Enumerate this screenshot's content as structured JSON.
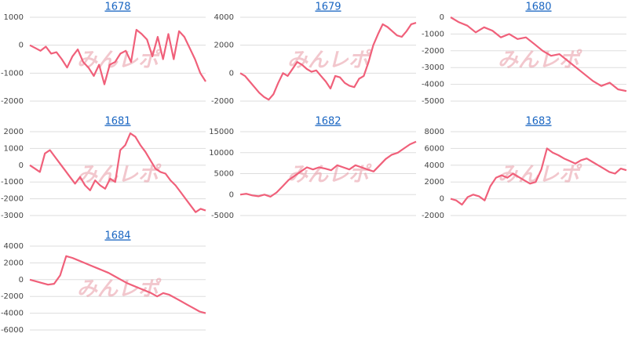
{
  "watermark": "みんレポ",
  "chart_data": [
    {
      "type": "line",
      "title": "1678",
      "color": "#f0607a",
      "grid": true,
      "ylim": [
        -2000,
        1000
      ],
      "yticks": [
        -2000,
        -1000,
        0,
        1000
      ],
      "values": [
        0,
        -100,
        -200,
        -50,
        -300,
        -250,
        -500,
        -800,
        -400,
        -150,
        -600,
        -800,
        -1100,
        -700,
        -1400,
        -700,
        -600,
        -300,
        -200,
        -600,
        550,
        400,
        200,
        -400,
        300,
        -500,
        400,
        -500,
        500,
        300,
        -100,
        -500,
        -1000,
        -1300
      ]
    },
    {
      "type": "line",
      "title": "1679",
      "color": "#f0607a",
      "grid": true,
      "ylim": [
        -2000,
        4000
      ],
      "yticks": [
        -2000,
        0,
        2000,
        4000
      ],
      "values": [
        0,
        -200,
        -600,
        -1000,
        -1400,
        -1700,
        -1900,
        -1500,
        -700,
        0,
        -200,
        300,
        800,
        600,
        300,
        100,
        200,
        -200,
        -600,
        -1100,
        -200,
        -300,
        -700,
        -900,
        -1000,
        -400,
        -200,
        800,
        2000,
        2800,
        3500,
        3300,
        3000,
        2700,
        2600,
        3000,
        3500,
        3600
      ]
    },
    {
      "type": "line",
      "title": "1680",
      "color": "#f0607a",
      "grid": true,
      "ylim": [
        -5000,
        0
      ],
      "yticks": [
        -5000,
        -4000,
        -3000,
        -2000,
        -1000,
        0
      ],
      "values": [
        0,
        -300,
        -500,
        -900,
        -600,
        -800,
        -1200,
        -1000,
        -1300,
        -1200,
        -1600,
        -2000,
        -2300,
        -2200,
        -2600,
        -3000,
        -3400,
        -3800,
        -4100,
        -3900,
        -4300,
        -4400
      ]
    },
    {
      "type": "line",
      "title": "1681",
      "color": "#f0607a",
      "grid": true,
      "ylim": [
        -3000,
        2000
      ],
      "yticks": [
        -3000,
        -2000,
        -1000,
        0,
        1000,
        2000
      ],
      "values": [
        0,
        -200,
        -400,
        700,
        900,
        500,
        100,
        -300,
        -700,
        -1100,
        -700,
        -1200,
        -1500,
        -900,
        -1200,
        -1400,
        -800,
        -1000,
        900,
        1200,
        1900,
        1700,
        1200,
        800,
        300,
        -200,
        -400,
        -500,
        -900,
        -1200,
        -1600,
        -2000,
        -2400,
        -2800,
        -2600,
        -2700
      ]
    },
    {
      "type": "line",
      "title": "1682",
      "color": "#f0607a",
      "grid": true,
      "ylim": [
        -5000,
        15000
      ],
      "yticks": [
        -5000,
        0,
        5000,
        10000,
        15000
      ],
      "values": [
        0,
        200,
        -200,
        -400,
        0,
        -500,
        500,
        2000,
        3500,
        4500,
        5500,
        6500,
        6000,
        6500,
        6200,
        5800,
        7000,
        6500,
        6000,
        7000,
        6500,
        6000,
        5500,
        7000,
        8500,
        9500,
        10000,
        11000,
        12000,
        12600
      ]
    },
    {
      "type": "line",
      "title": "1683",
      "color": "#f0607a",
      "grid": true,
      "ylim": [
        -2000,
        8000
      ],
      "yticks": [
        -2000,
        0,
        2000,
        4000,
        6000,
        8000
      ],
      "values": [
        0,
        -200,
        -700,
        200,
        500,
        300,
        -200,
        1500,
        2500,
        2800,
        2500,
        3000,
        2600,
        2200,
        1800,
        2000,
        3500,
        6000,
        5500,
        5200,
        4800,
        4500,
        4200,
        4600,
        4800,
        4400,
        4000,
        3600,
        3200,
        3000,
        3600,
        3400
      ]
    },
    {
      "type": "line",
      "title": "1684",
      "color": "#f0607a",
      "grid": true,
      "ylim": [
        -6000,
        4000
      ],
      "yticks": [
        -6000,
        -4000,
        -2000,
        0,
        2000,
        4000
      ],
      "values": [
        0,
        -200,
        -400,
        -600,
        -500,
        500,
        2800,
        2600,
        2300,
        2000,
        1700,
        1400,
        1100,
        800,
        400,
        0,
        -400,
        -700,
        -1000,
        -1300,
        -1600,
        -2000,
        -1600,
        -1800,
        -2200,
        -2600,
        -3000,
        -3400,
        -3800,
        -4000
      ]
    }
  ]
}
